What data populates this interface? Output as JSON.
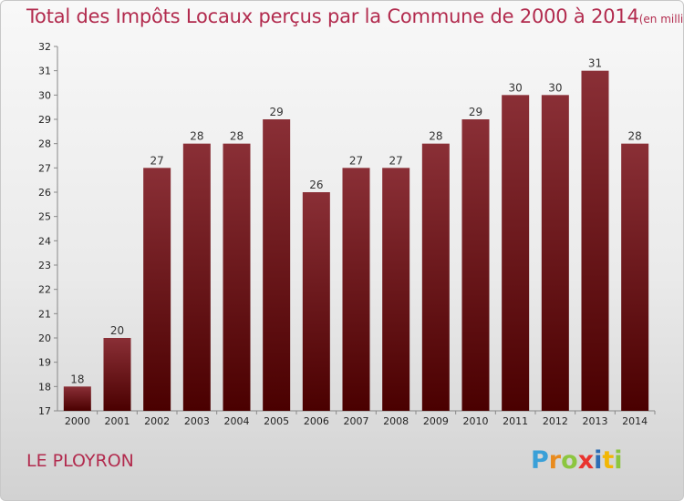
{
  "header": {
    "title": "Total des Impôts Locaux perçus par la Commune de 2000 à 2014",
    "unit_note": "(en milliers d'€)"
  },
  "footer": {
    "commune": "LE PLOYRON",
    "logo_letters": [
      "P",
      "r",
      "o",
      "x",
      "i",
      "t",
      "i"
    ],
    "logo_colors": [
      "#3aa0d8",
      "#e98b1e",
      "#8cc63f",
      "#e9332e",
      "#2c6db5",
      "#f2b705",
      "#8cc63f"
    ]
  },
  "colors": {
    "bar_top": "#8a2f36",
    "bar_bottom": "#4a0000",
    "accent": "#b22b4e"
  },
  "chart_data": {
    "type": "bar",
    "title": "Total des Impôts Locaux perçus par la Commune de 2000 à 2014",
    "xlabel": "",
    "ylabel": "",
    "categories": [
      "2000",
      "2001",
      "2002",
      "2003",
      "2004",
      "2005",
      "2006",
      "2007",
      "2008",
      "2009",
      "2010",
      "2011",
      "2012",
      "2013",
      "2014"
    ],
    "values": [
      18,
      20,
      27,
      28,
      28,
      29,
      26,
      27,
      27,
      28,
      29,
      30,
      30,
      31,
      28
    ],
    "ylim": [
      17,
      32
    ],
    "yticks": [
      17,
      18,
      19,
      20,
      21,
      22,
      23,
      24,
      25,
      26,
      27,
      28,
      29,
      30,
      31,
      32
    ],
    "grid": false
  }
}
